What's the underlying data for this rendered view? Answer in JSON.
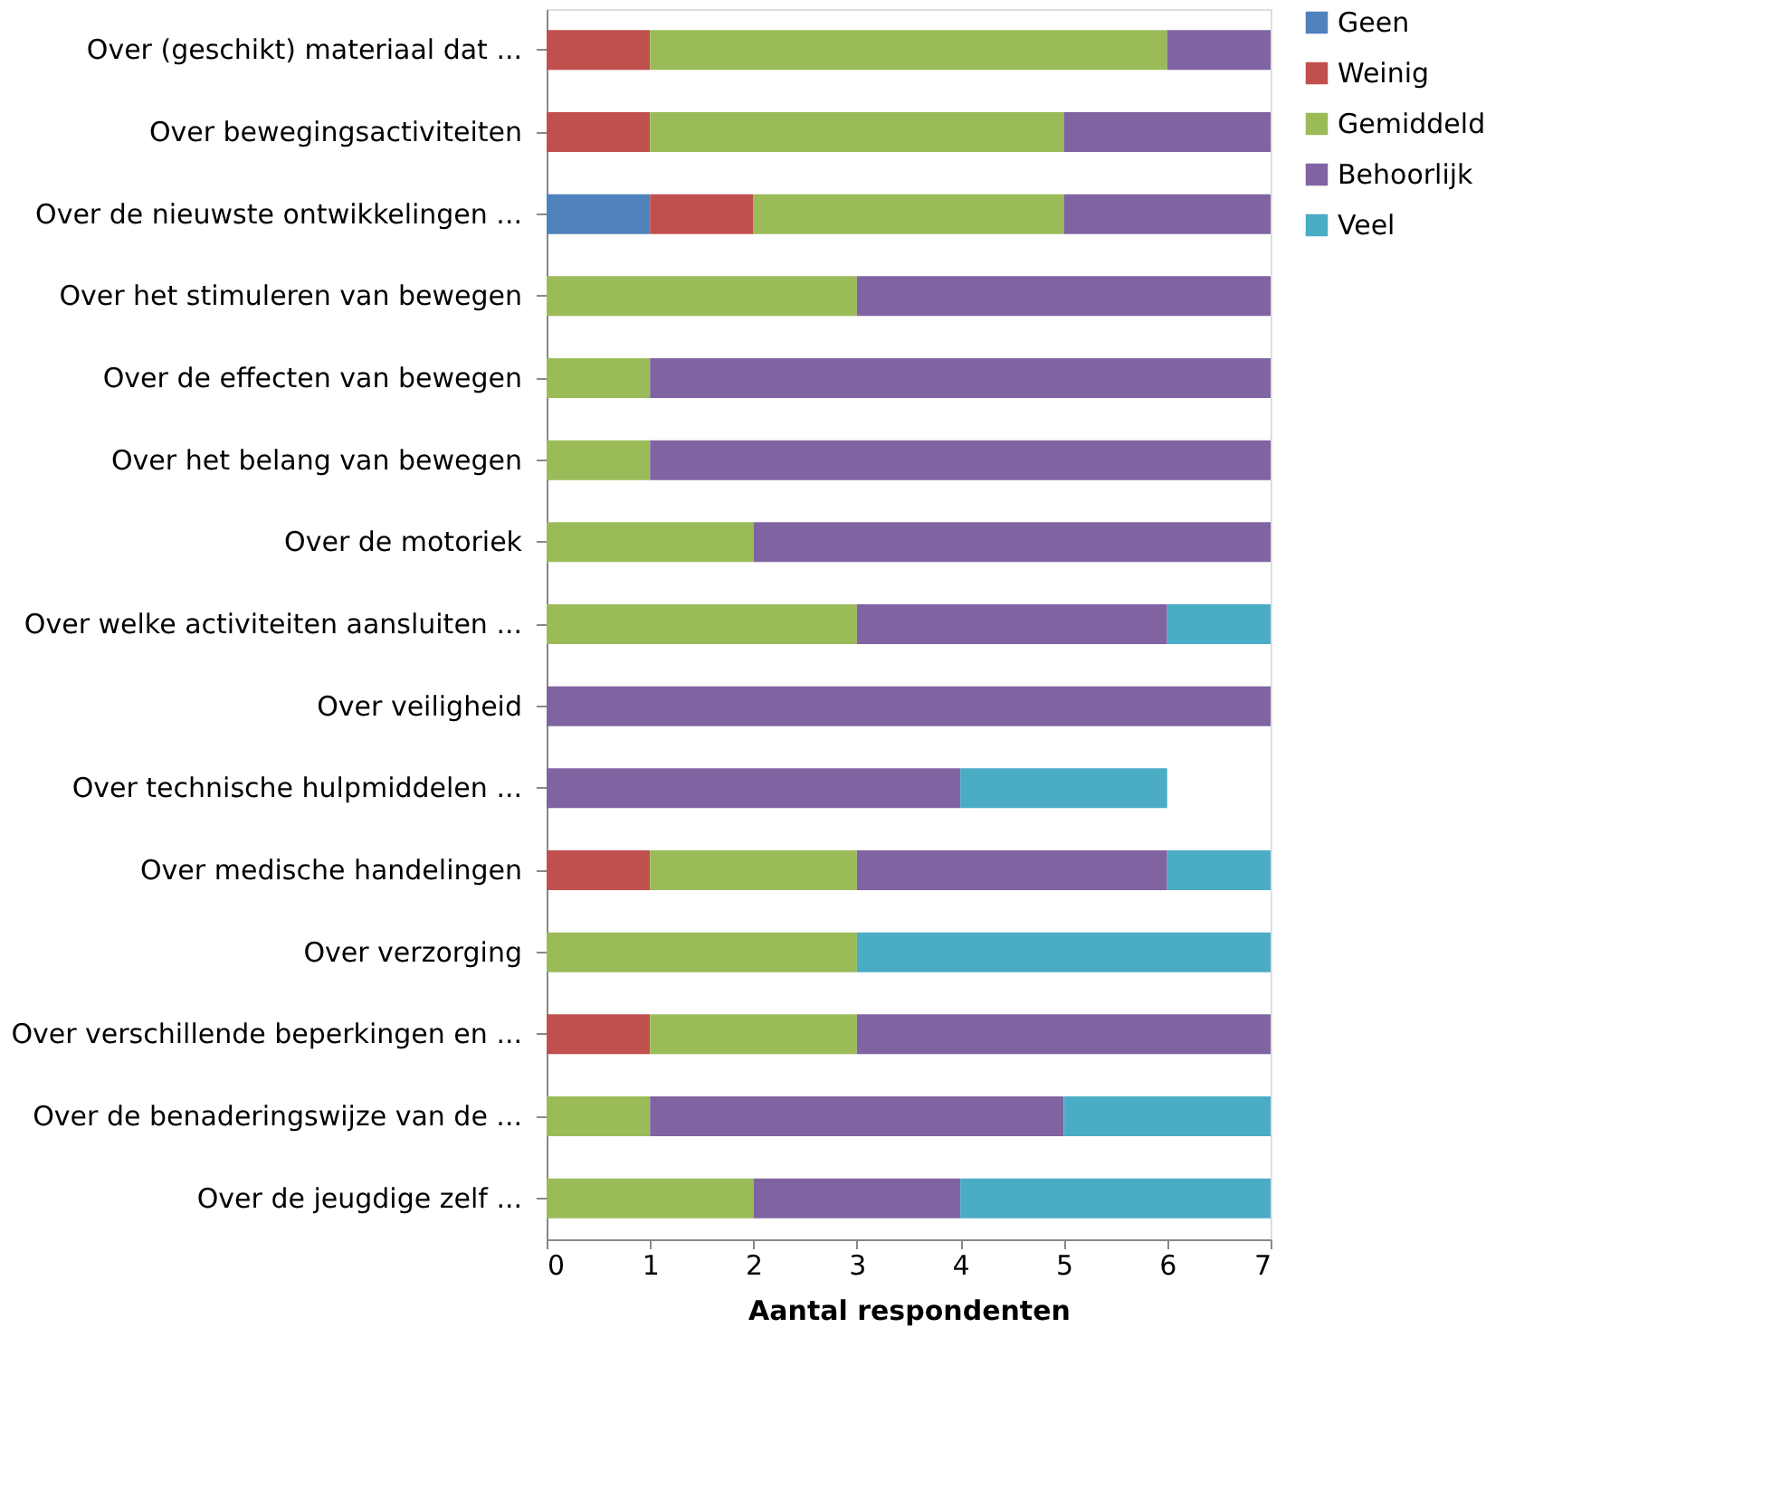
{
  "chart_data": {
    "type": "bar",
    "orientation": "horizontal",
    "stacked": true,
    "xlabel": "Aantal respondenten",
    "categories": [
      "Over (geschikt) materiaal dat ...",
      "Over bewegingsactiviteiten",
      "Over de nieuwste ontwikkelingen ...",
      "Over het stimuleren van bewegen",
      "Over de effecten van bewegen",
      "Over het belang van bewegen",
      "Over de motoriek",
      "Over welke activiteiten aansluiten ...",
      "Over veiligheid",
      "Over technische hulpmiddelen ...",
      "Over medische handelingen",
      "Over verzorging",
      "Over verschillende beperkingen en ...",
      "Over de benaderingswijze van de ...",
      "Over de jeugdige zelf ..."
    ],
    "series": [
      {
        "name": "Geen",
        "color": "#4f81bd",
        "values": [
          null,
          null,
          1,
          null,
          null,
          null,
          null,
          null,
          null,
          null,
          null,
          null,
          null,
          null,
          null
        ]
      },
      {
        "name": "Weinig",
        "color": "#c0504d",
        "values": [
          1,
          1,
          1,
          null,
          null,
          null,
          null,
          null,
          null,
          null,
          1,
          null,
          1,
          null,
          null
        ]
      },
      {
        "name": "Gemiddeld",
        "color": "#9bbb59",
        "values": [
          5,
          4,
          3,
          3,
          1,
          1,
          2,
          3,
          null,
          null,
          2,
          3,
          2,
          1,
          2
        ]
      },
      {
        "name": "Behoorlijk",
        "color": "#8064a2",
        "values": [
          1,
          2,
          2,
          4,
          6,
          6,
          5,
          3,
          7,
          4,
          3,
          null,
          4,
          4,
          2
        ]
      },
      {
        "name": "Veel",
        "color": "#4bacc6",
        "values": [
          null,
          null,
          null,
          null,
          null,
          null,
          null,
          1,
          null,
          2,
          1,
          4,
          null,
          2,
          3
        ]
      }
    ],
    "xlim": [
      0,
      7
    ],
    "xticks": [
      0,
      1,
      2,
      3,
      4,
      5,
      6,
      7
    ],
    "grid": false,
    "legend": "right"
  }
}
